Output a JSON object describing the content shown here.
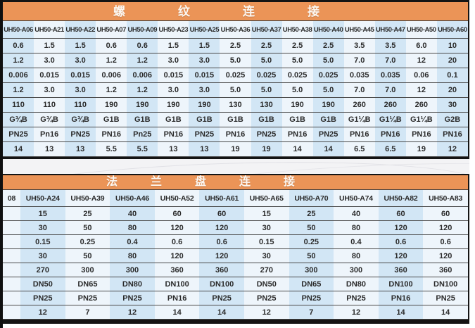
{
  "page": {
    "background": "#ffffff",
    "accent_orange": "#eb9457",
    "stripe_blue": "#d2e6f5",
    "stripe_light": "#eef5fb",
    "text_color": "#2b2b2b",
    "grid_line_color": "#4a4a4a",
    "frame_border_color": "#141414"
  },
  "tables": [
    {
      "name": "threaded-connection",
      "title": "螺纹连接",
      "columns": [
        "UH50-A06",
        "UH50-A21",
        "UH50-A22",
        "UH50-A07",
        "UH50-A09",
        "UH50-A23",
        "UH50-A25",
        "UH50-A36",
        "UH50-A37",
        "UH50-A38",
        "UH50-A40",
        "UH50-A45",
        "UH50-A47",
        "UH50-A50",
        "UH50-A60"
      ],
      "rows": [
        [
          "0.6",
          "1.5",
          "1.5",
          "0.6",
          "0.6",
          "1.5",
          "1.5",
          "2.5",
          "2.5",
          "2.5",
          "2.5",
          "3.5",
          "3.5",
          "6.0",
          "10"
        ],
        [
          "1.2",
          "3.0",
          "3.0",
          "1.2",
          "1.2",
          "3.0",
          "3.0",
          "5.0",
          "5.0",
          "5.0",
          "5.0",
          "7.0",
          "7.0",
          "12",
          "20"
        ],
        [
          "0.006",
          "0.015",
          "0.015",
          "0.006",
          "0.006",
          "0.015",
          "0.015",
          "0.025",
          "0.025",
          "0.025",
          "0.025",
          "0.035",
          "0.035",
          "0.06",
          "0.1"
        ],
        [
          "1.2",
          "3.0",
          "3.0",
          "1.2",
          "1.2",
          "3.0",
          "3.0",
          "5.0",
          "5.0",
          "5.0",
          "5.0",
          "7.0",
          "7.0",
          "12",
          "20"
        ],
        [
          "110",
          "110",
          "110",
          "190",
          "190",
          "190",
          "190",
          "130",
          "130",
          "190",
          "190",
          "260",
          "260",
          "260",
          "30"
        ],
        [
          "G¾B",
          "G¾B",
          "G¾B",
          "G1B",
          "G1B",
          "G1B",
          "G1B",
          "G1B",
          "G1B",
          "G1B",
          "G1B",
          "G1¼B",
          "G1¼B",
          "G1¼B",
          "G2B"
        ],
        [
          "PN25",
          "Pn16",
          "PN25",
          "PN16",
          "Pn25",
          "PN16",
          "PN25",
          "PN16",
          "PN25",
          "PN16",
          "PN25",
          "PN16",
          "PN16",
          "PN16",
          "PN16"
        ],
        [
          "14",
          "13",
          "13",
          "5.5",
          "5.5",
          "13",
          "13",
          "19",
          "19",
          "14",
          "14",
          "6.5",
          "6.5",
          "19",
          "12"
        ]
      ]
    },
    {
      "name": "flange-connection",
      "title": "法兰盘连接",
      "cut_column_header": "08",
      "columns": [
        "UH50-A24",
        "UH50-A39",
        "UH50-A46",
        "UH50-A52",
        "UH50-A61",
        "UH50-A65",
        "UH50-A70",
        "UH50-A74",
        "UH50-A82",
        "UH50-A83"
      ],
      "rows": [
        [
          "15",
          "25",
          "40",
          "60",
          "60",
          "15",
          "25",
          "40",
          "60",
          "60"
        ],
        [
          "30",
          "50",
          "80",
          "120",
          "120",
          "30",
          "50",
          "80",
          "120",
          "120"
        ],
        [
          "0.15",
          "0.25",
          "0.4",
          "0.6",
          "0.6",
          "0.15",
          "0.25",
          "0.4",
          "0.6",
          "0.6"
        ],
        [
          "30",
          "50",
          "80",
          "120",
          "120",
          "30",
          "50",
          "80",
          "120",
          "120"
        ],
        [
          "270",
          "300",
          "300",
          "360",
          "360",
          "270",
          "300",
          "300",
          "360",
          "360"
        ],
        [
          "DN50",
          "DN65",
          "DN80",
          "DN100",
          "DN100",
          "DN50",
          "DN65",
          "DN80",
          "DN100",
          "DN100"
        ],
        [
          "PN25",
          "PN25",
          "PN25",
          "PN16",
          "PN25",
          "PN25",
          "PN25",
          "PN25",
          "PN16",
          "PN25"
        ],
        [
          "12",
          "7",
          "12",
          "14",
          "14",
          "12",
          "7",
          "12",
          "14",
          "14"
        ]
      ]
    }
  ]
}
